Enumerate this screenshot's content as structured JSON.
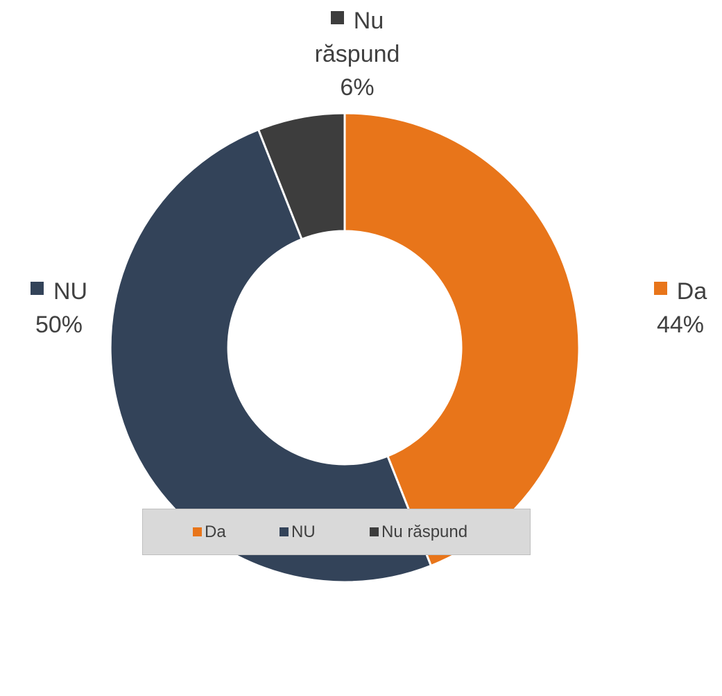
{
  "chart_data": {
    "type": "donut",
    "categories": [
      "Da",
      "NU",
      "Nu răspund"
    ],
    "values": [
      44,
      50,
      6
    ],
    "value_labels": [
      "44%",
      "50%",
      "6%"
    ],
    "colors": [
      "#e8751a",
      "#334359",
      "#3d3d3d"
    ],
    "legend": "bottom"
  }
}
